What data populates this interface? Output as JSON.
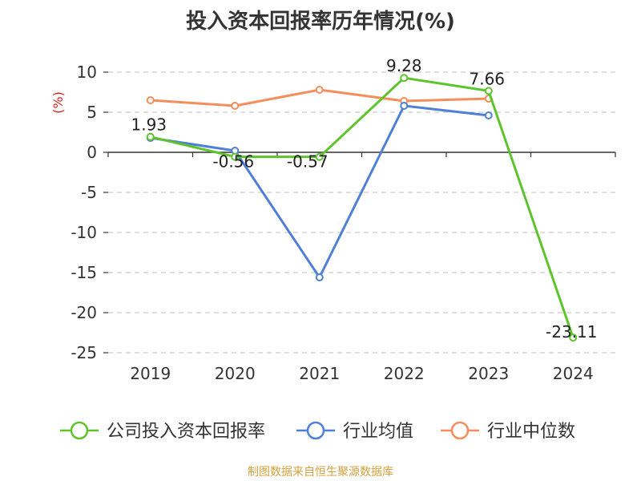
{
  "chart_data": {
    "type": "line",
    "title": "投入资本回报率历年情况(%)",
    "ylabel": "(%)",
    "categories": [
      "2019",
      "2020",
      "2021",
      "2022",
      "2023",
      "2024"
    ],
    "ylim": [
      -25,
      10
    ],
    "yticks": [
      10,
      5,
      0,
      -5,
      -10,
      -15,
      -20,
      -25
    ],
    "grid": true,
    "legend_position": "bottom",
    "series": [
      {
        "name": "公司投入资本回报率",
        "color": "#5ec42c",
        "values": [
          1.93,
          -0.56,
          -0.57,
          9.28,
          7.66,
          -23.11
        ],
        "labels": [
          "1.93",
          "-0.56",
          "-0.57",
          "9.28",
          "7.66",
          "-23.11"
        ]
      },
      {
        "name": "行业均值",
        "color": "#4f7fd7",
        "values": [
          1.8,
          0.2,
          -15.6,
          5.8,
          4.6,
          null
        ]
      },
      {
        "name": "行业中位数",
        "color": "#f58e5a",
        "values": [
          6.5,
          5.8,
          7.8,
          6.4,
          6.7,
          null
        ]
      }
    ]
  },
  "source_text": "制图数据来自恒生聚源数据库",
  "colors": {
    "source": "#d4a23f",
    "ylabel": "#e02020",
    "grid": "#cccccc"
  }
}
